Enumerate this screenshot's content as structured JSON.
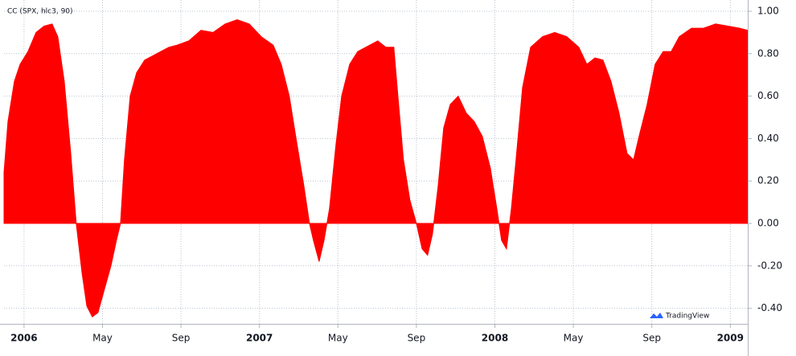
{
  "chart_data": {
    "type": "area",
    "title": "CC (SPX, hlc3, 90)",
    "watermark": "TradingView",
    "color": "#ff0000",
    "grid": true,
    "x": [
      -1.02,
      -0.82,
      -0.49,
      -0.2,
      0.2,
      0.61,
      1.02,
      1.43,
      1.72,
      2.05,
      2.38,
      2.66,
      2.95,
      3.2,
      3.48,
      3.77,
      4.1,
      4.43,
      4.71,
      4.92,
      5.12,
      5.41,
      5.74,
      6.15,
      6.56,
      6.97,
      7.38,
      7.79,
      8.4,
      9.02,
      9.63,
      10.25,
      10.86,
      11.48,
      12.09,
      12.7,
      13.11,
      13.52,
      13.85,
      14.26,
      14.55,
      14.75,
      15.04,
      15.29,
      15.57,
      15.9,
      16.19,
      16.6,
      17.01,
      17.42,
      18.03,
      18.44,
      18.85,
      19.06,
      19.34,
      19.67,
      20,
      20.29,
      20.57,
      20.82,
      21.11,
      21.39,
      21.72,
      22.13,
      22.54,
      22.95,
      23.36,
      23.77,
      24.1,
      24.34,
      24.59,
      24.84,
      25.08,
      25.41,
      25.82,
      26.43,
      27.05,
      27.66,
      28.28,
      28.69,
      29.1,
      29.51,
      29.92,
      30.33,
      30.74,
      31.07,
      31.35,
      31.76,
      32.17,
      32.58,
      32.99,
      33.4,
      34.02,
      34.63,
      35.25,
      35.86,
      36.48,
      36.89
    ],
    "values": [
      0.24,
      0.48,
      0.67,
      0.75,
      0.81,
      0.9,
      0.93,
      0.94,
      0.88,
      0.67,
      0.33,
      0,
      -0.23,
      -0.39,
      -0.44,
      -0.42,
      -0.31,
      -0.2,
      -0.08,
      0,
      0.3,
      0.6,
      0.71,
      0.77,
      0.79,
      0.81,
      0.83,
      0.84,
      0.86,
      0.91,
      0.9,
      0.94,
      0.96,
      0.94,
      0.88,
      0.84,
      0.75,
      0.6,
      0.41,
      0.18,
      0,
      -0.08,
      -0.18,
      -0.08,
      0.07,
      0.37,
      0.6,
      0.75,
      0.81,
      0.83,
      0.86,
      0.83,
      0.83,
      0.6,
      0.3,
      0.11,
      0,
      -0.12,
      -0.15,
      -0.05,
      0.18,
      0.45,
      0.56,
      0.6,
      0.52,
      0.48,
      0.41,
      0.26,
      0.07,
      -0.08,
      -0.12,
      0.07,
      0.3,
      0.64,
      0.83,
      0.88,
      0.9,
      0.88,
      0.83,
      0.75,
      0.78,
      0.77,
      0.67,
      0.52,
      0.33,
      0.3,
      0.41,
      0.56,
      0.75,
      0.81,
      0.81,
      0.88,
      0.92,
      0.92,
      0.94,
      0.93,
      0.92,
      0.91
    ],
    "xlim": [
      -1.02,
      36.89
    ],
    "xticks": [
      {
        "value": 0,
        "label": "2006"
      },
      {
        "value": 4,
        "label": "May"
      },
      {
        "value": 8,
        "label": "Sep"
      },
      {
        "value": 12,
        "label": "2007"
      },
      {
        "value": 16,
        "label": "May"
      },
      {
        "value": 20,
        "label": "Sep"
      },
      {
        "value": 24,
        "label": "2008"
      },
      {
        "value": 28,
        "label": "May"
      },
      {
        "value": 32,
        "label": "Sep"
      },
      {
        "value": 36,
        "label": "2009"
      }
    ],
    "ylim": [
      -0.47,
      1.04
    ],
    "yticks": [
      {
        "value": 1,
        "label": "1.00"
      },
      {
        "value": 0.8,
        "label": "0.80"
      },
      {
        "value": 0.6,
        "label": "0.60"
      },
      {
        "value": 0.4,
        "label": "0.40"
      },
      {
        "value": 0.2,
        "label": "0.20"
      },
      {
        "value": 0,
        "label": "0.00"
      },
      {
        "value": -0.2,
        "label": "-0.20"
      },
      {
        "value": -0.4,
        "label": "-0.40"
      }
    ]
  }
}
